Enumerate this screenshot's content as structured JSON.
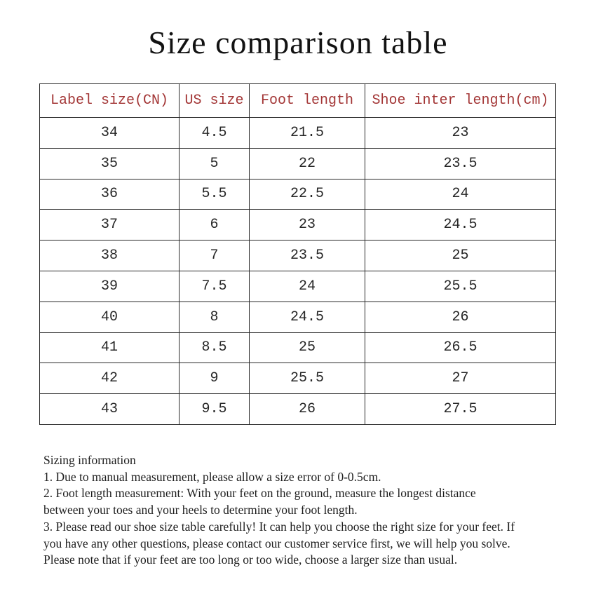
{
  "title": "Size comparison table",
  "chart_data": {
    "type": "table",
    "title": "Size comparison table",
    "columns": [
      "Label size(CN)",
      "US size",
      "Foot length",
      "Shoe inter length(cm)"
    ],
    "rows": [
      [
        "34",
        "4.5",
        "21.5",
        "23"
      ],
      [
        "35",
        "5",
        "22",
        "23.5"
      ],
      [
        "36",
        "5.5",
        "22.5",
        "24"
      ],
      [
        "37",
        "6",
        "23",
        "24.5"
      ],
      [
        "38",
        "7",
        "23.5",
        "25"
      ],
      [
        "39",
        "7.5",
        "24",
        "25.5"
      ],
      [
        "40",
        "8",
        "24.5",
        "26"
      ],
      [
        "41",
        "8.5",
        "25",
        "26.5"
      ],
      [
        "42",
        "9",
        "25.5",
        "27"
      ],
      [
        "43",
        "9.5",
        "26",
        "27.5"
      ]
    ]
  },
  "notes": {
    "lines": [
      "Sizing information",
      "1. Due to manual measurement, please allow a size error of 0-0.5cm.",
      "2. Foot length measurement: With your feet on the ground, measure the longest distance",
      "between your toes and your heels to determine your foot length.",
      "3. Please read our shoe size table carefully! It can help you choose the right size for your feet. If",
      "you have any other questions, please contact our customer service first, we will help you solve.",
      "Please note that if your feet are too long or too wide, choose a larger size than usual."
    ]
  },
  "colors": {
    "header_text": "#a33636",
    "border": "#2a2a2a",
    "body_text": "#262626",
    "title_text": "#121212",
    "background": "#ffffff"
  }
}
